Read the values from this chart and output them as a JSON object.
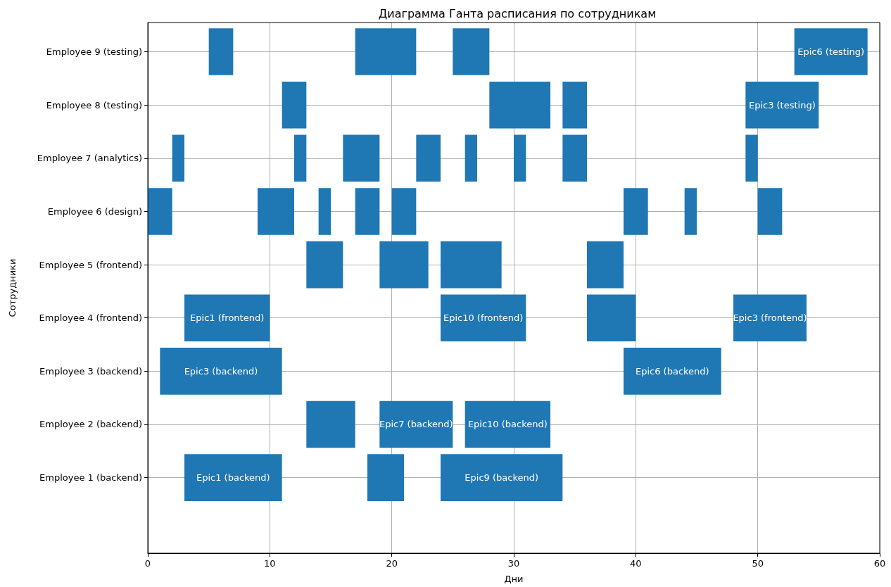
{
  "chart_data": {
    "type": "bar",
    "orientation": "horizontal",
    "title": "Диаграмма Ганта расписания по сотрудникам",
    "xlabel": "Дни",
    "ylabel": "Сотрудники",
    "categories": [
      "Employee 9 (testing)",
      "Employee 8 (testing)",
      "Employee 7 (analytics)",
      "Employee 6 (design)",
      "Employee 5 (frontend)",
      "Employee 4 (frontend)",
      "Employee 3 (backend)",
      "Employee 2 (backend)",
      "Employee 1 (backend)"
    ],
    "xlim": [
      0,
      60
    ],
    "xticks": [
      0,
      10,
      20,
      30,
      40,
      50,
      60
    ],
    "grid": true,
    "series": [
      {
        "color": "#1f77b4",
        "base": [
          5,
          11,
          2,
          0,
          13,
          3,
          1,
          13,
          3
        ],
        "values": [
          2,
          2,
          1,
          2,
          3,
          7,
          10,
          4,
          8
        ],
        "value_labels": [
          null,
          null,
          null,
          null,
          null,
          "Epic1 (frontend)",
          "Epic3 (backend)",
          null,
          "Epic1 (backend)"
        ]
      },
      {
        "color": "#1f77b4",
        "base": [
          17,
          28,
          12,
          9,
          19,
          24,
          39,
          19,
          18
        ],
        "values": [
          5,
          5,
          1,
          3,
          4,
          7,
          8,
          6,
          3
        ],
        "value_labels": [
          null,
          null,
          null,
          null,
          null,
          "Epic10 (frontend)",
          "Epic6 (backend)",
          "Epic7 (backend)",
          null
        ]
      },
      {
        "color": "#1f77b4",
        "base": [
          25,
          34,
          16,
          14,
          24,
          36,
          null,
          26,
          24
        ],
        "values": [
          3,
          2,
          3,
          1,
          5,
          4,
          null,
          7,
          10
        ],
        "value_labels": [
          null,
          null,
          null,
          null,
          null,
          null,
          null,
          "Epic10 (backend)",
          "Epic9 (backend)"
        ]
      },
      {
        "color": "#1f77b4",
        "base": [
          53,
          49,
          22,
          17,
          36,
          48,
          null,
          null,
          null
        ],
        "values": [
          6,
          6,
          2,
          2,
          3,
          6,
          null,
          null,
          null
        ],
        "value_labels": [
          "Epic6 (testing)",
          "Epic3 (testing)",
          null,
          null,
          null,
          "Epic3 (frontend)",
          null,
          null,
          null
        ]
      },
      {
        "color": "#1f77b4",
        "base": [
          null,
          null,
          26,
          20,
          null,
          null,
          null,
          null,
          null
        ],
        "values": [
          null,
          null,
          1,
          2,
          null,
          null,
          null,
          null,
          null
        ]
      },
      {
        "color": "#1f77b4",
        "base": [
          null,
          null,
          30,
          39,
          null,
          null,
          null,
          null,
          null
        ],
        "values": [
          null,
          null,
          1,
          2,
          null,
          null,
          null,
          null,
          null
        ]
      },
      {
        "color": "#1f77b4",
        "base": [
          null,
          null,
          34,
          44,
          null,
          null,
          null,
          null,
          null
        ],
        "values": [
          null,
          null,
          2,
          1,
          null,
          null,
          null,
          null,
          null
        ]
      },
      {
        "color": "#1f77b4",
        "base": [
          null,
          null,
          49,
          50,
          null,
          null,
          null,
          null,
          null
        ],
        "values": [
          null,
          null,
          1,
          2,
          null,
          null,
          null,
          null,
          null
        ]
      }
    ]
  }
}
